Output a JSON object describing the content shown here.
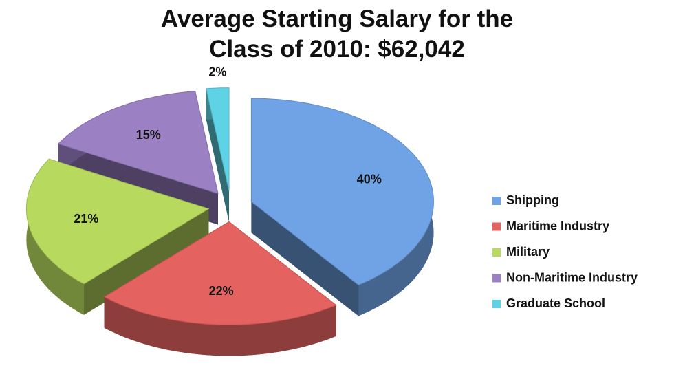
{
  "chart_data": {
    "type": "pie3d",
    "title": "Average Starting Salary for the Class of 2010: $62,042",
    "categories": [
      "Shipping",
      "Maritime Industry",
      "Military",
      "Non-Maritime Industry",
      "Graduate School"
    ],
    "values": [
      40,
      22,
      21,
      15,
      2
    ],
    "value_labels": [
      "40%",
      "22%",
      "21%",
      "15%",
      "2%"
    ],
    "colors": [
      "#6fa3e6",
      "#e4625f",
      "#b7da5e",
      "#9b80c4",
      "#5fd3e6"
    ],
    "legend": "right"
  }
}
